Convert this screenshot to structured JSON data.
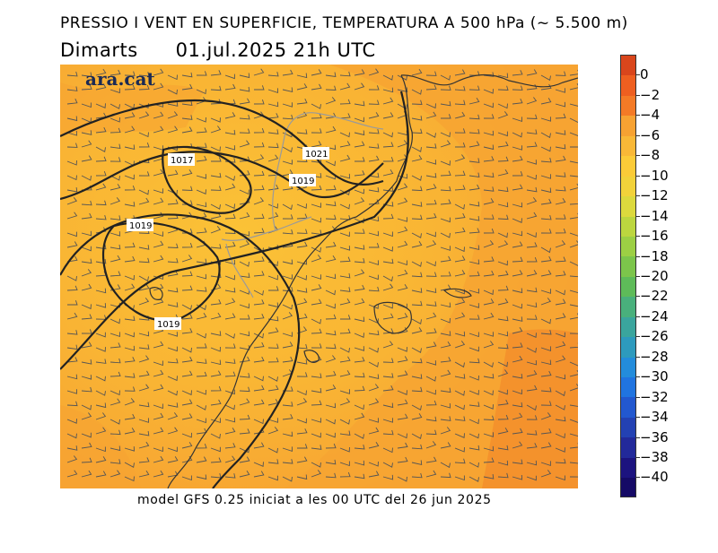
{
  "header": {
    "title": "PRESSIO I VENT EN SUPERFICIE, TEMPERATURA A 500 hPa (~ 5.500 m)",
    "day": "Dimarts",
    "datetime": "01.jul.2025 21h UTC"
  },
  "map": {
    "watermark": "ara.cat",
    "isobar_labels": [
      "1017",
      "1021",
      "1019",
      "1019",
      "1019"
    ],
    "colors": {
      "field_light": "#f9bc34",
      "field_mid": "#f7a432",
      "field_dark": "#f28a2a",
      "land_line": "#333333",
      "border_line": "#9a9a9a",
      "isobar": "#222222",
      "barb": "#555555"
    }
  },
  "colorbar": {
    "labels": [
      "0",
      "−2",
      "−4",
      "−6",
      "−8",
      "−10",
      "−12",
      "−14",
      "−16",
      "−18",
      "−20",
      "−22",
      "−24",
      "−26",
      "−28",
      "−30",
      "−32",
      "−34",
      "−36",
      "−38",
      "−40"
    ],
    "colors": [
      "#d9461c",
      "#ee5f20",
      "#f47a26",
      "#f7a232",
      "#f9b837",
      "#fbcb38",
      "#f2d23a",
      "#dcd93d",
      "#bcd63f",
      "#9ccf44",
      "#7cc54b",
      "#5ebb59",
      "#49b07c",
      "#3aa59d",
      "#2d9abd",
      "#238cdb",
      "#2074e0",
      "#2258cf",
      "#2341b3",
      "#22299a",
      "#1c137f",
      "#150a66"
    ]
  },
  "footer": {
    "model_note": "model GFS 0.25 iniciat a les 00 UTC del 26 jun 2025"
  }
}
